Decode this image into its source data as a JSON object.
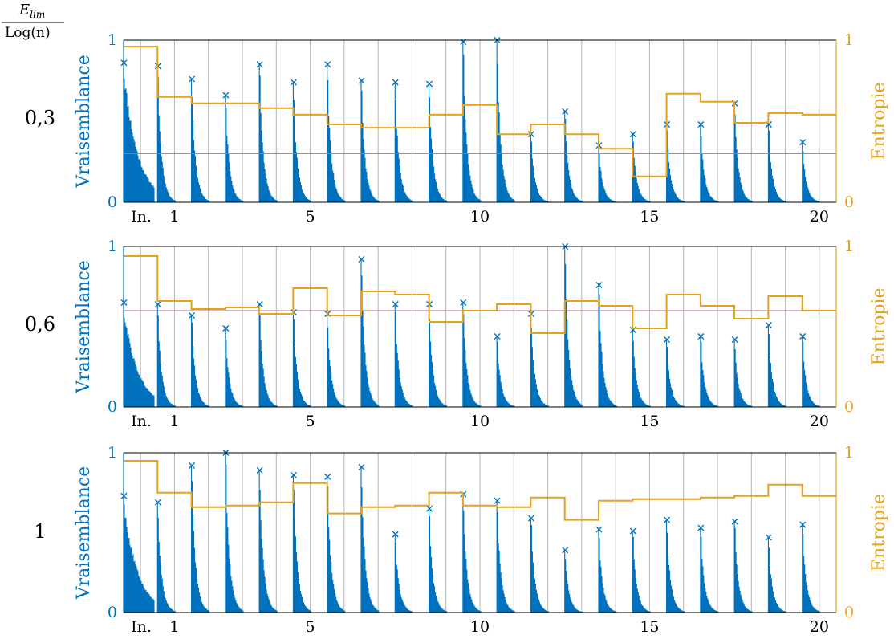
{
  "header": {
    "numerator_main": "E",
    "numerator_sub": "lim",
    "denominator": "Log(n)"
  },
  "colors": {
    "likelihood": "#0072bd",
    "entropy": "#e6a21a",
    "threshold": "#a3768e",
    "grid": "#b4b4b4",
    "axis": "#000000"
  },
  "icons": {
    "marker": "x-marker-icon"
  },
  "chart_data": [
    {
      "type": "bar",
      "row_label": "0,3",
      "threshold": 0.3,
      "ylabel_left": "Vraisemblance",
      "ylabel_right": "Entropie",
      "ylim": [
        0,
        1
      ],
      "ylim_right": [
        0,
        1
      ],
      "left_ticks": [
        "0",
        "1"
      ],
      "right_ticks": [
        "0",
        "1"
      ],
      "x_tick_labels": [
        "In.",
        "1",
        "5",
        "10",
        "15",
        "20"
      ],
      "x_tick_positions": [
        0,
        1,
        5,
        10,
        15,
        20
      ],
      "grid": true,
      "groups": [
        "In.",
        "1",
        "2",
        "3",
        "4",
        "5",
        "6",
        "7",
        "8",
        "9",
        "10",
        "11",
        "12",
        "13",
        "14",
        "15",
        "16",
        "17",
        "18",
        "19",
        "20"
      ],
      "max_likelihood": [
        0.86,
        0.84,
        0.76,
        0.66,
        0.85,
        0.74,
        0.85,
        0.75,
        0.74,
        0.73,
        0.99,
        1.0,
        0.42,
        0.56,
        0.35,
        0.42,
        0.48,
        0.48,
        0.61,
        0.48,
        0.37
      ],
      "entropy": [
        0.96,
        0.65,
        0.61,
        0.61,
        0.58,
        0.54,
        0.48,
        0.46,
        0.46,
        0.54,
        0.6,
        0.42,
        0.48,
        0.42,
        0.33,
        0.16,
        0.67,
        0.62,
        0.49,
        0.55,
        0.54
      ]
    },
    {
      "type": "bar",
      "row_label": "0,6",
      "threshold": 0.6,
      "ylabel_left": "Vraisemblance",
      "ylabel_right": "Entropie",
      "ylim": [
        0,
        1
      ],
      "ylim_right": [
        0,
        1
      ],
      "left_ticks": [
        "0",
        "1"
      ],
      "right_ticks": [
        "0",
        "1"
      ],
      "x_tick_labels": [
        "In.",
        "1",
        "5",
        "10",
        "15",
        "20"
      ],
      "x_tick_positions": [
        0,
        1,
        5,
        10,
        15,
        20
      ],
      "grid": true,
      "groups": [
        "In.",
        "1",
        "2",
        "3",
        "4",
        "5",
        "6",
        "7",
        "8",
        "9",
        "10",
        "11",
        "12",
        "13",
        "14",
        "15",
        "16",
        "17",
        "18",
        "19",
        "20"
      ],
      "max_likelihood": [
        0.65,
        0.64,
        0.57,
        0.49,
        0.64,
        0.59,
        0.58,
        0.92,
        0.64,
        0.64,
        0.65,
        0.44,
        0.58,
        1.0,
        0.76,
        0.48,
        0.42,
        0.44,
        0.42,
        0.51,
        0.44
      ],
      "entropy": [
        0.94,
        0.66,
        0.61,
        0.62,
        0.58,
        0.74,
        0.57,
        0.72,
        0.7,
        0.53,
        0.6,
        0.64,
        0.46,
        0.66,
        0.63,
        0.49,
        0.7,
        0.63,
        0.55,
        0.69,
        0.6
      ]
    },
    {
      "type": "bar",
      "row_label": "1",
      "threshold": null,
      "ylabel_left": "Vraisemblance",
      "ylabel_right": "Entropie",
      "ylim": [
        0,
        1
      ],
      "ylim_right": [
        0,
        1
      ],
      "left_ticks": [
        "0",
        "1"
      ],
      "right_ticks": [
        "0",
        "1"
      ],
      "x_tick_labels": [
        "In.",
        "1",
        "5",
        "10",
        "15",
        "20"
      ],
      "x_tick_positions": [
        0,
        1,
        5,
        10,
        15,
        20
      ],
      "grid": true,
      "groups": [
        "In.",
        "1",
        "2",
        "3",
        "4",
        "5",
        "6",
        "7",
        "8",
        "9",
        "10",
        "11",
        "12",
        "13",
        "14",
        "15",
        "16",
        "17",
        "18",
        "19",
        "20"
      ],
      "max_likelihood": [
        0.73,
        0.69,
        0.92,
        1.0,
        0.89,
        0.86,
        0.85,
        0.91,
        0.49,
        0.65,
        0.74,
        0.7,
        0.59,
        0.39,
        0.52,
        0.51,
        0.58,
        0.53,
        0.57,
        0.47,
        0.55
      ],
      "entropy": [
        0.95,
        0.75,
        0.66,
        0.67,
        0.69,
        0.81,
        0.62,
        0.66,
        0.67,
        0.75,
        0.67,
        0.66,
        0.72,
        0.58,
        0.7,
        0.71,
        0.71,
        0.72,
        0.73,
        0.8,
        0.73
      ]
    }
  ]
}
